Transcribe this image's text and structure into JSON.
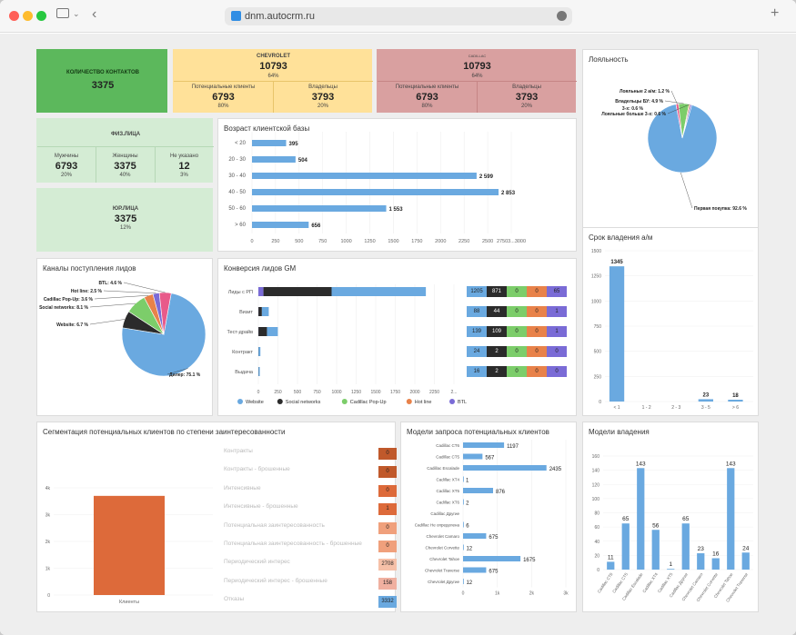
{
  "browser": {
    "url": "dnm.autocrm.ru"
  },
  "kpi": {
    "contacts_label": "КОЛИЧЕСТВО КОНТАКТОВ",
    "contacts_value": "3375",
    "chev_title": "CHEVROLET",
    "chev_value": "10793",
    "chev_pct": "64%",
    "chev_pot_label": "Потенциальные клиенты",
    "chev_pot_value": "6793",
    "chev_pot_pct": "80%",
    "chev_own_label": "Владельцы",
    "chev_own_value": "3793",
    "chev_own_pct": "20%",
    "cad_title": "CADILLAC",
    "cad_value": "10793",
    "cad_pct": "64%",
    "cad_pot_label": "Потенциальные клиенты",
    "cad_pot_value": "6793",
    "cad_pot_pct": "80%",
    "cad_own_label": "Владельцы",
    "cad_own_value": "3793",
    "cad_own_pct": "20%",
    "fiz_title": "ФИЗ.ЛИЦА",
    "men_label": "Мужчины",
    "men_value": "6793",
    "men_pct": "20%",
    "women_label": "Женщины",
    "women_value": "3375",
    "women_pct": "40%",
    "na_label": "Не указано",
    "na_value": "12",
    "na_pct": "3%",
    "yur_title": "ЮР.ЛИЦА",
    "yur_value": "3375",
    "yur_pct": "12%"
  },
  "colors": {
    "green": "#5cb85c",
    "light_green": "#d4ecd4",
    "yellow": "#ffe199",
    "red": "#d9a0a0",
    "blue": "#6aa9e0",
    "dark": "#2b2b2b",
    "lime": "#7ccd6a",
    "orange": "#e8824a",
    "purple": "#7a6bd6",
    "seg_orange": "#dd6a3a"
  },
  "chart_data": [
    {
      "id": "loyalty",
      "type": "pie",
      "title": "Лояльность",
      "slices": [
        {
          "label": "Первая покупка: 92.6 %",
          "value": 92.6,
          "color": "#6aa9e0"
        },
        {
          "label": "Лояльные 2 а/м: 1.2 %",
          "value": 1.2,
          "color": "#e85a8a"
        },
        {
          "label": "Владельцы БУ: 4.9 %",
          "value": 4.9,
          "color": "#7ccd6a"
        },
        {
          "label": "Лояльные больше 3-х: 0.6 %",
          "value": 0.6,
          "color": "#e8824a"
        },
        {
          "label": "",
          "value": 0.7,
          "color": "#7a6bd6"
        }
      ]
    },
    {
      "id": "age",
      "type": "bar",
      "title": "Возраст клиентской базы",
      "orientation": "horizontal",
      "categories": [
        "< 20",
        "20 - 30",
        "30 - 40",
        "40 - 50",
        "50 - 60",
        "> 60"
      ],
      "values": [
        395,
        504,
        2599,
        2853,
        1553,
        656
      ],
      "value_labels": [
        "395",
        "504",
        "2 599",
        "2 853",
        "1 553",
        "656"
      ],
      "xticks": [
        "0",
        "250",
        "500",
        "750",
        "1000",
        "1250",
        "1500",
        "1750",
        "2000",
        "2250",
        "2500",
        "27503...3000"
      ],
      "xlim": [
        0,
        3000
      ]
    },
    {
      "id": "ownership",
      "type": "bar",
      "title": "Срок владения а/м",
      "categories": [
        "< 1",
        "1 - 2",
        "2 - 3",
        "3 - 5",
        "> 6"
      ],
      "values": [
        1345,
        0,
        0,
        23,
        18
      ],
      "value_labels": [
        "1345",
        "",
        "",
        "23",
        "18"
      ],
      "yticks": [
        "0",
        "250",
        "500",
        "750",
        "1000",
        "1250",
        "1500"
      ],
      "ylim": [
        0,
        1500
      ]
    },
    {
      "id": "channels",
      "type": "pie",
      "title": "Каналы поступления лидов",
      "slices": [
        {
          "label": "Дилер: 75.1 %",
          "value": 75.1,
          "color": "#6aa9e0"
        },
        {
          "label": "Website: 6.7 %",
          "value": 6.7,
          "color": "#2b2b2b"
        },
        {
          "label": "Social networks: 8.1 %",
          "value": 8.1,
          "color": "#7ccd6a"
        },
        {
          "label": "Cadillac Pop-Up: 3.6 %",
          "value": 3.6,
          "color": "#e8824a"
        },
        {
          "label": "Hot line: 2.5 %",
          "value": 2.5,
          "color": "#7a6bd6"
        },
        {
          "label": "BTL: 4.6 %",
          "value": 4.6,
          "color": "#e85a8a"
        }
      ]
    },
    {
      "id": "conversion",
      "type": "bar",
      "title": "Конверсия лидов GM",
      "stacked": true,
      "orientation": "horizontal",
      "categories": [
        "Лиды с РП",
        "Визит",
        "Тест-драйв",
        "Контракт",
        "Выдача"
      ],
      "series": [
        {
          "name": "Website",
          "color": "#6aa9e0",
          "values": [
            1205,
            88,
            139,
            24,
            16
          ]
        },
        {
          "name": "Social networks",
          "color": "#2b2b2b",
          "values": [
            871,
            44,
            109,
            2,
            2
          ]
        },
        {
          "name": "Cadillac Pop-Up",
          "color": "#7ccd6a",
          "values": [
            0,
            0,
            0,
            0,
            0
          ]
        },
        {
          "name": "Hot line",
          "color": "#e8824a",
          "values": [
            0,
            0,
            0,
            0,
            0
          ]
        },
        {
          "name": "BTL",
          "color": "#7a6bd6",
          "values": [
            65,
            1,
            1,
            0,
            0
          ]
        }
      ],
      "xticks": [
        "0",
        "250",
        "500",
        "750",
        "1000",
        "1250",
        "1500",
        "1750",
        "2000",
        "2250",
        "2..."
      ],
      "xlim": [
        0,
        2500
      ]
    },
    {
      "id": "segmentation",
      "type": "bar",
      "title": "Сегментация потенциальных клиентов по степени заинтересованности",
      "categories": [
        "Клиенты"
      ],
      "values": [
        3700
      ],
      "yticks": [
        "0",
        "1k",
        "2k",
        "3k",
        "4k"
      ],
      "ylim": [
        0,
        4000
      ],
      "legend": [
        {
          "label": "Контракты",
          "value": "0"
        },
        {
          "label": "Контракты - брошенные",
          "value": "0"
        },
        {
          "label": "Интенсивные",
          "value": "0"
        },
        {
          "label": "Интенсивные - брошенные",
          "value": "1"
        },
        {
          "label": "Потенциальная заинтересованность",
          "value": "0"
        },
        {
          "label": "Потенциальная заинтересованность - брошенные",
          "value": "0"
        },
        {
          "label": "Периодический интерес",
          "value": "2708"
        },
        {
          "label": "Периодический интерес - брошенные",
          "value": "158"
        },
        {
          "label": "Отказы",
          "value": "3332"
        }
      ]
    },
    {
      "id": "request_models",
      "type": "bar",
      "title": "Модели запроса потенциальных клиентов",
      "orientation": "horizontal",
      "categories": [
        "Cadillac CT6",
        "Cadillac CT5",
        "Cadillac Escalade",
        "Cadillac XT4",
        "Cadillac XT5",
        "Cadillac XT6",
        "Cadillac Другие",
        "Cadillac Не определена",
        "Chevrolet Camaro",
        "Chevrolet Corvette",
        "Chevrolet Tahoe",
        "Chevrolet Traverse",
        "Chevrolet Другие"
      ],
      "values": [
        1197,
        567,
        2435,
        1,
        876,
        2,
        0,
        6,
        675,
        12,
        1675,
        675,
        12
      ],
      "xticks": [
        "0",
        "1k",
        "2k",
        "3k"
      ],
      "xlim": [
        0,
        3000
      ]
    },
    {
      "id": "owner_models",
      "type": "bar",
      "title": "Модели владения",
      "categories": [
        "Cadillac CT6",
        "Cadillac CT5",
        "Cadillac Escalade",
        "Cadillac XT4",
        "Cadillac XT5",
        "Cadillac Другие",
        "Chevrolet Camaro",
        "Chevrolet Corvette",
        "Chevrolet Tahoe",
        "Chevrolet Traverse"
      ],
      "values": [
        11,
        65,
        143,
        56,
        1,
        65,
        23,
        16,
        143,
        24
      ],
      "yticks": [
        "0",
        "20",
        "40",
        "60",
        "80",
        "100",
        "120",
        "140",
        "160"
      ],
      "ylim": [
        0,
        160
      ]
    }
  ]
}
